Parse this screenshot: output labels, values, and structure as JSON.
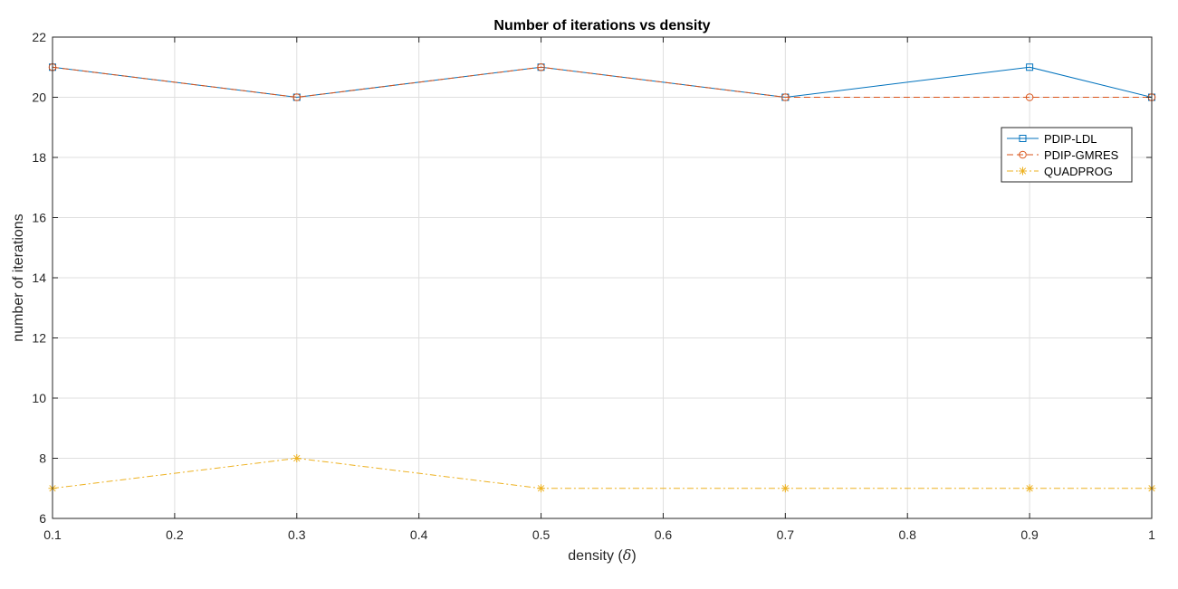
{
  "chart_data": {
    "type": "line",
    "title": "Number of iterations vs density",
    "xlabel_prefix": "density (",
    "xlabel_symbol": "δ",
    "xlabel_suffix": ")",
    "ylabel": "number of iterations",
    "x": [
      0.1,
      0.3,
      0.5,
      0.7,
      0.9,
      1
    ],
    "xlim": [
      0.1,
      1
    ],
    "ylim": [
      6,
      22
    ],
    "xticks": [
      0.1,
      0.2,
      0.3,
      0.4,
      0.5,
      0.6,
      0.7,
      0.8,
      0.9,
      1
    ],
    "xtick_labels": [
      "0.1",
      "0.2",
      "0.3",
      "0.4",
      "0.5",
      "0.6",
      "0.7",
      "0.8",
      "0.9",
      "1"
    ],
    "yticks": [
      6,
      8,
      10,
      12,
      14,
      16,
      18,
      20,
      22
    ],
    "ytick_labels": [
      "6",
      "8",
      "10",
      "12",
      "14",
      "16",
      "18",
      "20",
      "22"
    ],
    "grid": true,
    "legend_position": "top-right",
    "series": [
      {
        "name": "PDIP-LDL",
        "values": [
          21,
          20,
          21,
          20,
          21,
          20
        ],
        "color": "#0072BD",
        "marker": "square",
        "dash": "solid"
      },
      {
        "name": "PDIP-GMRES",
        "values": [
          21,
          20,
          21,
          20,
          20,
          20
        ],
        "color": "#D95319",
        "marker": "circle",
        "dash": "dashed"
      },
      {
        "name": "QUADPROG",
        "values": [
          7,
          8,
          7,
          7,
          7,
          7
        ],
        "color": "#EDB120",
        "marker": "asterisk",
        "dash": "dashdot"
      }
    ]
  }
}
